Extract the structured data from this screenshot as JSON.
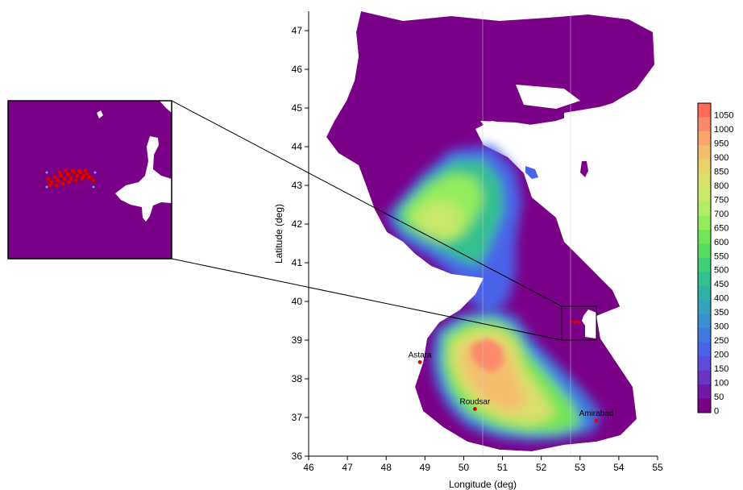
{
  "map": {
    "xlabel": "Longitude (deg)",
    "ylabel": "Latitude (deg)",
    "xlim": [
      46,
      55
    ],
    "ylim": [
      36,
      47.5
    ],
    "x_ticks": [
      "46",
      "47",
      "48",
      "49",
      "50",
      "51",
      "52",
      "53",
      "54",
      "55"
    ],
    "y_ticks": [
      "36",
      "37",
      "38",
      "39",
      "40",
      "41",
      "42",
      "43",
      "44",
      "45",
      "46",
      "47"
    ],
    "land_color": "#ffffff",
    "shelf_color": "#7a0087",
    "cities": [
      {
        "name": "Astara",
        "lon": 48.87,
        "lat": 38.43
      },
      {
        "name": "Roudsar",
        "lon": 50.29,
        "lat": 37.22
      },
      {
        "name": "Amirabad",
        "lon": 53.42,
        "lat": 36.92
      }
    ],
    "inset_region": {
      "lon": [
        52.6,
        53.56
      ],
      "lat": [
        39.03,
        40.0
      ]
    }
  },
  "colorbar": {
    "labels": [
      "1050",
      "1000",
      "950",
      "900",
      "850",
      "800",
      "750",
      "700",
      "650",
      "600",
      "550",
      "500",
      "450",
      "400",
      "350",
      "300",
      "250",
      "200",
      "150",
      "100",
      "50",
      "0"
    ],
    "colors": [
      "#ff6a5a",
      "#fb8a6c",
      "#f9a56b",
      "#f4bd6c",
      "#e8d26a",
      "#d9e06a",
      "#c7e868",
      "#b0ee66",
      "#93ec5c",
      "#73e457",
      "#56dc5f",
      "#41cf75",
      "#35c08f",
      "#2fb1a6",
      "#35a1be",
      "#3a90d3",
      "#3e7ae0",
      "#4a63e8",
      "#5e4cdc",
      "#6a35c2",
      "#7118a6",
      "#7a0087"
    ]
  }
}
